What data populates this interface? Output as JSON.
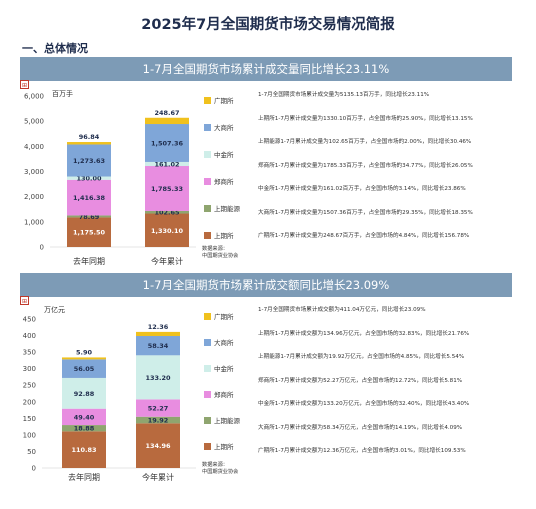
{
  "title": "2025年7月全国期货市场交易情况简报",
  "section": "一、总体情况",
  "marker": "⊞",
  "colors": {
    "上期所": "#b86a3e",
    "上期能源": "#8fa56f",
    "郑商所": "#e88de0",
    "中金所": "#cfeee9",
    "大商所": "#7fa6d8",
    "广期所": "#f0c11d"
  },
  "charts": [
    {
      "banner": "1-7月全国期货市场累计成交量同比增长23.11%",
      "unit": "百万手",
      "source": [
        "数据来源：",
        "中国期货业协会"
      ],
      "notes": [
        "1-7月全国期货市场累计成交量为5135.13百万手，同比增长23.11%",
        "上期所1-7月累计成交量为1330.10百万手，占全国市场的25.90%，同比增长13.15%",
        "上期能源1-7月累计成交量为102.65百万手，占全国市场的2.00%，同比增长30.46%",
        "郑商所1-7月累计成交量为1785.33百万手，占全国市场的34.77%，同比增长26.05%",
        "中金所1-7月累计成交量为161.02百万手，占全国市场的3.14%，同比增长23.86%",
        "大商所1-7月累计成交量为1507.36百万手，占全国市场的29.35%，同比增长18.35%",
        "广期所1-7月累计成交量为248.67百万手，占全国市场的4.84%，同比增长156.78%"
      ]
    },
    {
      "banner": "1-7月全国期货市场累计成交额同比增长23.09%",
      "unit": "万亿元",
      "source": [
        "数据来源：",
        "中国期货业协会"
      ],
      "notes": [
        "1-7月全国期货市场累计成交额为411.04万亿元，同比增长23.09%",
        "上期所1-7月累计成交额为134.96万亿元，占全国市场的32.83%，同比增长21.76%",
        "上期能源1-7月累计成交额为19.92万亿元，占全国市场的4.85%，同比增长5.54%",
        "郑商所1-7月累计成交额为52.27万亿元，占全国市场的12.72%，同比增长5.81%",
        "中金所1-7月累计成交额为133.20万亿元，占全国市场的32.40%，同比增长43.40%",
        "大商所1-7月累计成交额为58.34万亿元，占全国市场的14.19%，同比增长4.09%",
        "广期所1-7月累计成交额为12.36万亿元，占全国市场的3.01%，同比增长109.53%"
      ]
    }
  ],
  "chart_data": [
    {
      "type": "bar",
      "stacked": true,
      "categories": [
        "去年同期",
        "今年累计"
      ],
      "ylim": [
        0,
        6000
      ],
      "yticks": [
        "0",
        "1,000",
        "2,000",
        "3,000",
        "4,000",
        "5,000",
        "6,000"
      ],
      "legend": [
        "广期所",
        "大商所",
        "中金所",
        "郑商所",
        "上期能源",
        "上期所"
      ],
      "series": [
        {
          "name": "上期所",
          "values": [
            1175.5,
            1330.1
          ],
          "labels": [
            "1,175.50",
            "1,330.10"
          ]
        },
        {
          "name": "上期能源",
          "values": [
            78.69,
            102.65
          ],
          "labels": [
            "78.69",
            "102.65"
          ]
        },
        {
          "name": "郑商所",
          "values": [
            1416.38,
            1785.33
          ],
          "labels": [
            "1,416.38",
            "1,785.33"
          ]
        },
        {
          "name": "中金所",
          "values": [
            130.0,
            161.02
          ],
          "labels": [
            "130.00",
            "161.02"
          ]
        },
        {
          "name": "大商所",
          "values": [
            1273.63,
            1507.36
          ],
          "labels": [
            "1,273.63",
            "1,507.36"
          ]
        },
        {
          "name": "广期所",
          "values": [
            96.84,
            248.67
          ],
          "labels": [
            "96.84",
            "248.67"
          ]
        }
      ]
    },
    {
      "type": "bar",
      "stacked": true,
      "categories": [
        "去年同期",
        "今年累计"
      ],
      "ylim": [
        0,
        450
      ],
      "yticks": [
        "0",
        "50",
        "100",
        "150",
        "200",
        "250",
        "300",
        "350",
        "400",
        "450"
      ],
      "legend": [
        "广期所",
        "大商所",
        "中金所",
        "郑商所",
        "上期能源",
        "上期所"
      ],
      "series": [
        {
          "name": "上期所",
          "values": [
            110.83,
            134.96
          ],
          "labels": [
            "110.83",
            "134.96"
          ]
        },
        {
          "name": "上期能源",
          "values": [
            18.88,
            19.92
          ],
          "labels": [
            "18.88",
            "19.92"
          ]
        },
        {
          "name": "郑商所",
          "values": [
            49.4,
            52.27
          ],
          "labels": [
            "49.40",
            "52.27"
          ]
        },
        {
          "name": "中金所",
          "values": [
            92.88,
            133.2
          ],
          "labels": [
            "92.88",
            "133.20"
          ]
        },
        {
          "name": "大商所",
          "values": [
            56.05,
            58.34
          ],
          "labels": [
            "56.05",
            "58.34"
          ]
        },
        {
          "name": "广期所",
          "values": [
            5.9,
            12.36
          ],
          "labels": [
            "5.90",
            "12.36"
          ]
        }
      ]
    }
  ]
}
